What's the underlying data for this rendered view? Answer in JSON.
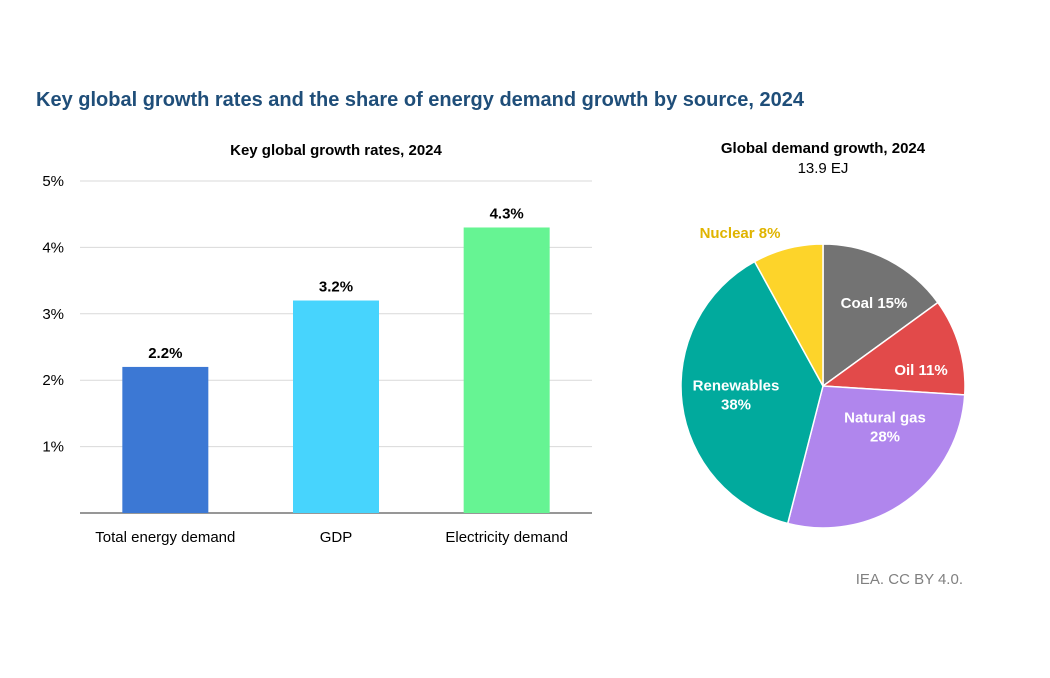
{
  "main_title": "Key global growth rates and the share of energy demand growth by source, 2024",
  "credit": "IEA. CC BY 4.0.",
  "chart_data": [
    {
      "type": "bar",
      "title": "Key global growth rates, 2024",
      "categories": [
        "Total energy demand",
        "GDP",
        "Electricity demand"
      ],
      "values": [
        2.2,
        3.2,
        4.3
      ],
      "value_labels": [
        "2.2%",
        "3.2%",
        "4.3%"
      ],
      "colors": [
        "#3c78d4",
        "#47d4fd",
        "#66f493"
      ],
      "ylim": [
        0,
        5
      ],
      "yticks": [
        1,
        2,
        3,
        4,
        5
      ],
      "ytick_labels": [
        "1%",
        "2%",
        "3%",
        "4%",
        "5%"
      ],
      "xlabel": "",
      "ylabel": "",
      "grid": true
    },
    {
      "type": "pie",
      "title": "Global demand growth, 2024",
      "subtitle": "13.9 EJ",
      "slices": [
        {
          "label": "Coal 15%",
          "lines": [
            "Coal 15%"
          ],
          "value": 15,
          "color": "#737373",
          "label_color": "#ffffff"
        },
        {
          "label": "Oil 11%",
          "lines": [
            "Oil 11%"
          ],
          "value": 11,
          "color": "#e24a4a",
          "label_color": "#ffffff"
        },
        {
          "label": "Natural gas 28%",
          "lines": [
            "Natural gas",
            "28%"
          ],
          "value": 28,
          "color": "#b086ed",
          "label_color": "#ffffff"
        },
        {
          "label": "Renewables 38%",
          "lines": [
            "Renewables",
            "38%"
          ],
          "value": 38,
          "color": "#01aa9d",
          "label_color": "#ffffff"
        },
        {
          "label": "Nuclear 8%",
          "lines": [
            "Nuclear 8%"
          ],
          "value": 8,
          "color": "#fdd42a",
          "label_color": "#e0b400"
        }
      ]
    }
  ]
}
